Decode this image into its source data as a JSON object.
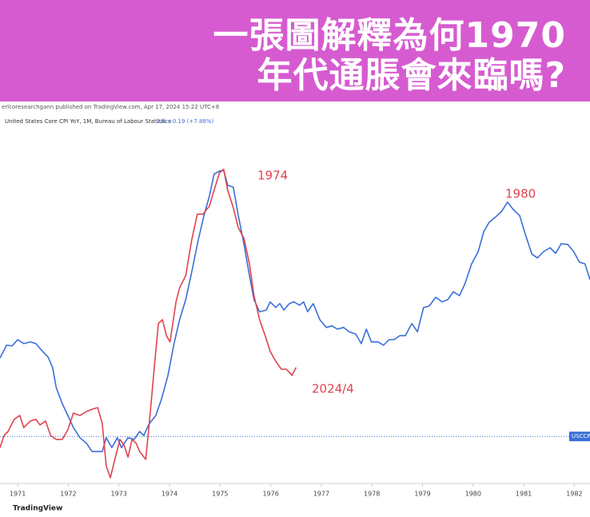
{
  "banner": {
    "lines": [
      "一張圖解釋為何1970",
      "年代通脹會來臨嗎?"
    ]
  },
  "chart_data": {
    "type": "line",
    "publisher": "erlcoresearchgann published on TradingView.com, Apr 17, 2024 15:22 UTC+8",
    "legend_values": [
      "2.6",
      "+0.19 (+7.88%)"
    ],
    "footer": "TradingView",
    "annotations": [
      {
        "text": "1974",
        "color": "#e0434f"
      },
      {
        "text": "1980",
        "color": "#e0434f"
      },
      {
        "text": "2024/4",
        "color": "#e0434f"
      }
    ],
    "reference_line": {
      "value": 3.81,
      "label": "USCCP",
      "color": "#3a6fd8"
    },
    "xlim": [
      1970.65,
      1982.31
    ],
    "ylim": [
      2.5,
      13.7
    ],
    "xticks": [
      1971,
      1972,
      1973,
      1974,
      1975,
      1976,
      1977,
      1978,
      1979,
      1980,
      1981,
      1982
    ],
    "series": [
      {
        "name": "United States Core CPI YoY, 1M, Bureau of Labour Statistics",
        "color": "#3a6fd8",
        "x": [
          1970.65,
          1970.78,
          1970.89,
          1971.0,
          1971.12,
          1971.25,
          1971.36,
          1971.47,
          1971.6,
          1971.69,
          1971.76,
          1971.88,
          1971.99,
          1972.1,
          1972.23,
          1972.36,
          1972.47,
          1972.58,
          1972.67,
          1972.75,
          1972.86,
          1972.97,
          1973.05,
          1973.18,
          1973.3,
          1973.41,
          1973.49,
          1973.6,
          1973.73,
          1973.84,
          1973.97,
          1974.09,
          1974.2,
          1974.32,
          1974.44,
          1974.57,
          1974.68,
          1974.79,
          1974.88,
          1974.99,
          1975.07,
          1975.15,
          1975.26,
          1975.36,
          1975.47,
          1975.58,
          1975.67,
          1975.78,
          1975.91,
          1975.99,
          1976.1,
          1976.18,
          1976.26,
          1976.37,
          1976.46,
          1976.57,
          1976.65,
          1976.73,
          1976.84,
          1976.97,
          1977.1,
          1977.21,
          1977.32,
          1977.44,
          1977.55,
          1977.68,
          1977.79,
          1977.89,
          1977.99,
          1978.12,
          1978.23,
          1978.34,
          1978.44,
          1978.55,
          1978.66,
          1978.79,
          1978.9,
          1979.02,
          1979.13,
          1979.26,
          1979.39,
          1979.5,
          1979.61,
          1979.73,
          1979.84,
          1979.97,
          1980.1,
          1980.21,
          1980.32,
          1980.44,
          1980.56,
          1980.68,
          1980.79,
          1980.92,
          1981.04,
          1981.16,
          1981.27,
          1981.39,
          1981.52,
          1981.63,
          1981.74,
          1981.87,
          1981.99,
          1982.1,
          1982.21,
          1982.31
        ],
        "values": [
          6.2,
          6.59,
          6.57,
          6.76,
          6.64,
          6.69,
          6.64,
          6.44,
          6.23,
          5.91,
          5.3,
          4.81,
          4.45,
          4.08,
          3.77,
          3.6,
          3.35,
          3.35,
          3.35,
          3.77,
          3.47,
          3.77,
          3.47,
          3.77,
          3.72,
          3.96,
          3.84,
          4.2,
          4.45,
          4.94,
          5.67,
          6.64,
          7.37,
          7.98,
          8.83,
          9.81,
          10.54,
          11.14,
          11.8,
          11.9,
          11.92,
          11.46,
          11.41,
          10.54,
          9.68,
          8.71,
          7.98,
          7.61,
          7.66,
          7.91,
          7.74,
          7.86,
          7.66,
          7.86,
          7.91,
          7.81,
          7.91,
          7.61,
          7.86,
          7.37,
          7.13,
          7.18,
          7.08,
          7.13,
          7.0,
          6.93,
          6.64,
          7.08,
          6.69,
          6.69,
          6.59,
          6.76,
          6.76,
          6.88,
          6.88,
          7.25,
          7.0,
          7.74,
          7.78,
          8.05,
          7.91,
          7.98,
          8.22,
          8.1,
          8.47,
          9.07,
          9.44,
          10.05,
          10.34,
          10.49,
          10.66,
          10.95,
          10.73,
          10.54,
          9.93,
          9.37,
          9.25,
          9.44,
          9.56,
          9.39,
          9.68,
          9.66,
          9.44,
          9.12,
          9.07,
          8.59
        ]
      },
      {
        "color": "#e0434f",
        "x": [
          1970.65,
          1970.73,
          1970.81,
          1970.93,
          1971.04,
          1971.12,
          1971.25,
          1971.36,
          1971.44,
          1971.55,
          1971.65,
          1971.76,
          1971.88,
          1971.99,
          1972.1,
          1972.23,
          1972.36,
          1972.47,
          1972.58,
          1972.67,
          1972.75,
          1972.83,
          1972.94,
          1973.02,
          1973.1,
          1973.18,
          1973.26,
          1973.34,
          1973.41,
          1973.53,
          1973.6,
          1973.7,
          1973.78,
          1973.86,
          1973.94,
          1974.01,
          1974.13,
          1974.2,
          1974.32,
          1974.44,
          1974.55,
          1974.66,
          1974.79,
          1974.88,
          1974.99,
          1975.07,
          1975.15,
          1975.26,
          1975.36,
          1975.47,
          1975.58,
          1975.67,
          1975.78,
          1975.89,
          1975.99,
          1976.1,
          1976.21,
          1976.31,
          1976.42,
          1976.5
        ],
        "values": [
          3.47,
          3.84,
          3.96,
          4.33,
          4.45,
          4.08,
          4.28,
          4.33,
          4.16,
          4.28,
          3.84,
          3.72,
          3.72,
          4.01,
          4.52,
          4.45,
          4.57,
          4.64,
          4.69,
          4.2,
          2.91,
          2.55,
          3.23,
          3.72,
          3.55,
          3.18,
          3.72,
          3.6,
          3.35,
          3.11,
          4.2,
          5.91,
          7.25,
          7.37,
          6.88,
          6.69,
          7.93,
          8.34,
          8.71,
          9.81,
          10.58,
          10.58,
          10.83,
          11.31,
          11.85,
          11.95,
          11.31,
          10.78,
          10.17,
          9.85,
          9.07,
          8.1,
          7.37,
          6.88,
          6.4,
          6.1,
          5.86,
          5.86,
          5.67,
          5.91
        ]
      }
    ]
  }
}
